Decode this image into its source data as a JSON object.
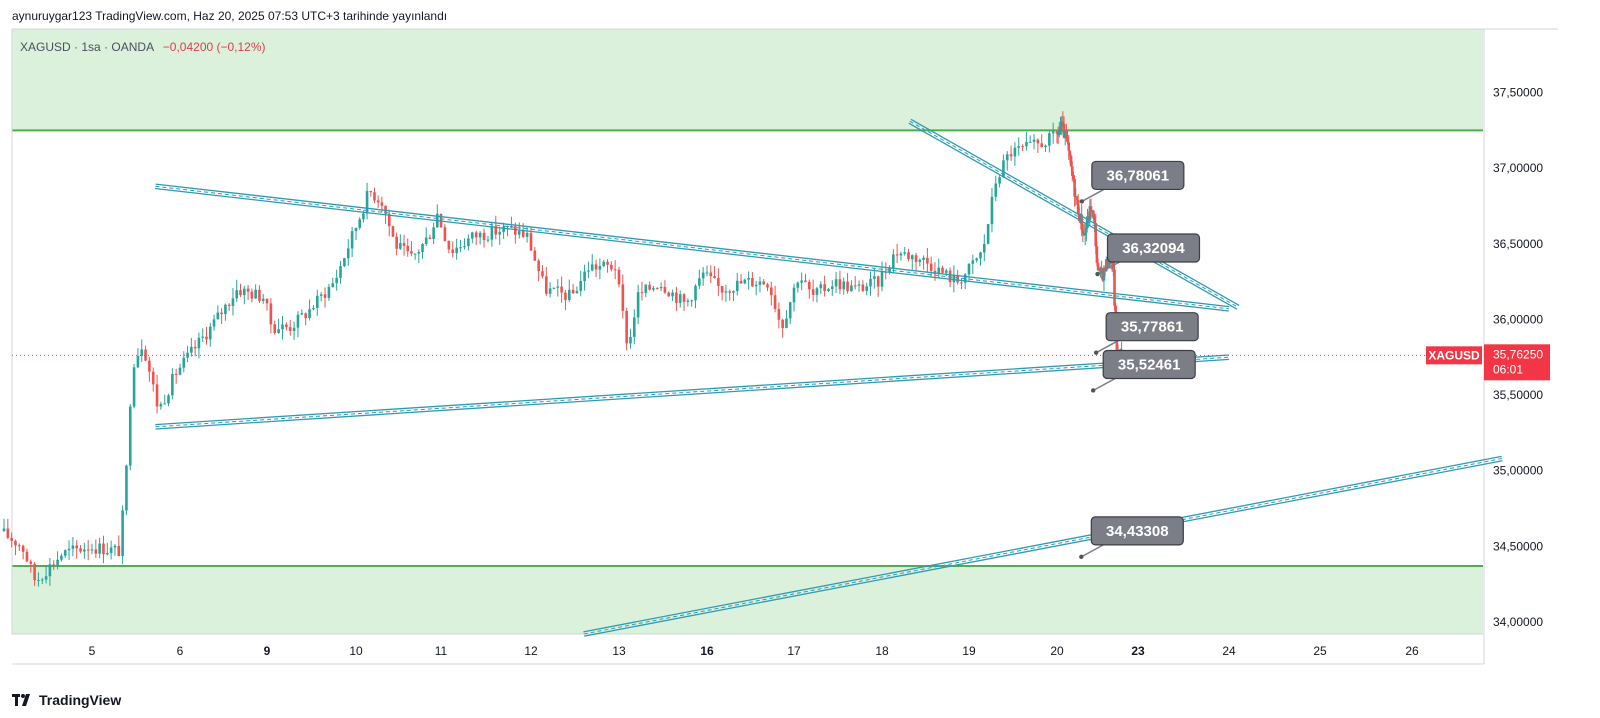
{
  "header": {
    "user": "aynuruygar123",
    "site": "TradingView.com",
    "published": "Haz 20, 2025 07:53 UTC+3 tarihinde yayınlandı"
  },
  "symbol_line": {
    "symbol": "XAGUSD",
    "interval": "1sa",
    "broker": "OANDA",
    "change": "−0,04200 (−0,12%)"
  },
  "footer": {
    "brand": "TradingView"
  },
  "colors": {
    "up": "#26a69a",
    "down": "#ef5350",
    "zone_fill": "#dcf1dc",
    "zone_line": "#4caf50",
    "trend": "#2d9bb5",
    "callout": "#7b7e86",
    "price_badge": "#f23645"
  },
  "chart_data": {
    "type": "candlestick",
    "y_ticks": [
      "37,50000",
      "37,00000",
      "36,50000",
      "36,00000",
      "35,50000",
      "35,00000",
      "34,50000",
      "34,00000"
    ],
    "y_tick_values": [
      37.5,
      37.0,
      36.5,
      36.0,
      35.5,
      35.0,
      34.5,
      34.0
    ],
    "ylim": [
      33.92,
      37.92
    ],
    "x_ticks": [
      {
        "label": "5",
        "day": 5,
        "bold": false
      },
      {
        "label": "6",
        "day": 6,
        "bold": false
      },
      {
        "label": "9",
        "day": 9,
        "bold": true
      },
      {
        "label": "10",
        "day": 10,
        "bold": false
      },
      {
        "label": "11",
        "day": 11,
        "bold": false
      },
      {
        "label": "12",
        "day": 12,
        "bold": false
      },
      {
        "label": "13",
        "day": 13,
        "bold": false
      },
      {
        "label": "16",
        "day": 16,
        "bold": true
      },
      {
        "label": "17",
        "day": 17,
        "bold": false
      },
      {
        "label": "18",
        "day": 18,
        "bold": false
      },
      {
        "label": "19",
        "day": 19,
        "bold": false
      },
      {
        "label": "20",
        "day": 20,
        "bold": false
      },
      {
        "label": "23",
        "day": 23,
        "bold": true
      },
      {
        "label": "24",
        "day": 24,
        "bold": false
      },
      {
        "label": "25",
        "day": 25,
        "bold": false
      },
      {
        "label": "26",
        "day": 26,
        "bold": false
      }
    ],
    "resistance_zone": {
      "low": 37.25,
      "high": 37.92
    },
    "support_zone": {
      "low": 33.92,
      "high": 34.37
    },
    "current_price": {
      "label": "XAGUSD",
      "value": 35.7625,
      "text": "35,76250",
      "countdown": "06:01"
    },
    "trendlines": [
      {
        "name": "upper-channel",
        "from": {
          "day": 5.72,
          "price": 36.88
        },
        "to": {
          "day": 24.0,
          "price": 36.07
        },
        "double": true
      },
      {
        "name": "lower-support",
        "from": {
          "day": 5.72,
          "price": 35.29
        },
        "to": {
          "day": 24.0,
          "price": 35.75
        },
        "double": true
      },
      {
        "name": "descending",
        "from": {
          "day": 18.32,
          "price": 37.31
        },
        "to": {
          "day": 24.1,
          "price": 36.08
        },
        "double": true
      },
      {
        "name": "lower-rising",
        "from": {
          "day": 12.6,
          "price": 33.92
        },
        "to": {
          "day": 27.0,
          "price": 35.08
        },
        "double": true
      }
    ],
    "callouts": [
      {
        "text": "36,78061",
        "price": 36.78061,
        "point": {
          "day": 20.92,
          "price": 36.78
        }
      },
      {
        "text": "36,32094",
        "price": 36.32094,
        "point": {
          "day": 21.5,
          "price": 36.3
        }
      },
      {
        "text": "35,77861",
        "price": 35.77861,
        "point": {
          "day": 21.45,
          "price": 35.78
        }
      },
      {
        "text": "35,52461",
        "price": 35.52461,
        "point": {
          "day": 21.34,
          "price": 35.53
        }
      },
      {
        "text": "34,43308",
        "price": 34.43308,
        "point": {
          "day": 20.9,
          "price": 34.43
        }
      }
    ],
    "anchors": [
      {
        "day": 4.0,
        "price": 34.6
      },
      {
        "day": 4.25,
        "price": 34.5
      },
      {
        "day": 4.4,
        "price": 34.27
      },
      {
        "day": 4.7,
        "price": 34.45
      },
      {
        "day": 5.0,
        "price": 34.5
      },
      {
        "day": 5.35,
        "price": 34.47
      },
      {
        "day": 5.42,
        "price": 34.85
      },
      {
        "day": 5.5,
        "price": 35.7
      },
      {
        "day": 5.62,
        "price": 35.85
      },
      {
        "day": 5.8,
        "price": 35.4
      },
      {
        "day": 6.0,
        "price": 35.65
      },
      {
        "day": 6.4,
        "price": 35.95
      },
      {
        "day": 6.7,
        "price": 36.2
      },
      {
        "day": 7.0,
        "price": 36.15
      },
      {
        "day": 7.1,
        "price": 35.95
      },
      {
        "day": 7.3,
        "price": 35.95
      },
      {
        "day": 7.5,
        "price": 36.05
      },
      {
        "day": 7.8,
        "price": 36.25
      },
      {
        "day": 8.0,
        "price": 36.55
      },
      {
        "day": 8.2,
        "price": 36.85
      },
      {
        "day": 8.35,
        "price": 36.78
      },
      {
        "day": 8.5,
        "price": 36.5
      },
      {
        "day": 8.7,
        "price": 36.4
      },
      {
        "day": 8.9,
        "price": 36.55
      },
      {
        "day": 9.0,
        "price": 36.7
      },
      {
        "day": 9.15,
        "price": 36.45
      },
      {
        "day": 9.4,
        "price": 36.55
      },
      {
        "day": 9.8,
        "price": 36.6
      },
      {
        "day": 10.0,
        "price": 36.55
      },
      {
        "day": 10.2,
        "price": 36.2
      },
      {
        "day": 10.5,
        "price": 36.15
      },
      {
        "day": 10.7,
        "price": 36.35
      },
      {
        "day": 11.0,
        "price": 36.35
      },
      {
        "day": 11.15,
        "price": 35.8
      },
      {
        "day": 11.25,
        "price": 36.15
      },
      {
        "day": 11.5,
        "price": 36.25
      },
      {
        "day": 11.8,
        "price": 36.1
      },
      {
        "day": 12.0,
        "price": 36.3
      },
      {
        "day": 12.2,
        "price": 36.2
      },
      {
        "day": 12.5,
        "price": 36.25
      },
      {
        "day": 12.75,
        "price": 36.25
      },
      {
        "day": 12.9,
        "price": 35.95
      },
      {
        "day": 13.1,
        "price": 36.3
      },
      {
        "day": 13.25,
        "price": 36.15
      },
      {
        "day": 13.5,
        "price": 36.25
      },
      {
        "day": 13.75,
        "price": 36.2
      },
      {
        "day": 14.0,
        "price": 36.25
      },
      {
        "day": 14.2,
        "price": 36.45
      },
      {
        "day": 14.5,
        "price": 36.4
      },
      {
        "day": 14.9,
        "price": 36.25
      },
      {
        "day": 15.0,
        "price": 36.3
      },
      {
        "day": 15.2,
        "price": 36.45
      },
      {
        "day": 15.35,
        "price": 36.92
      },
      {
        "day": 15.5,
        "price": 37.1
      },
      {
        "day": 15.8,
        "price": 37.15
      },
      {
        "day": 16.0,
        "price": 37.2
      },
      {
        "day": 16.2,
        "price": 37.28
      },
      {
        "day": 16.4,
        "price": 37.18
      },
      {
        "day": 16.65,
        "price": 36.9
      },
      {
        "day": 16.8,
        "price": 36.75
      },
      {
        "day": 17.05,
        "price": 36.55
      },
      {
        "day": 17.3,
        "price": 36.75
      },
      {
        "day": 17.45,
        "price": 36.6
      },
      {
        "day": 17.55,
        "price": 36.3
      },
      {
        "day": 17.75,
        "price": 36.3
      },
      {
        "day": 17.95,
        "price": 36.4
      },
      {
        "day": 18.1,
        "price": 36.4
      },
      {
        "day": 18.15,
        "price": 36.22
      },
      {
        "day": 18.25,
        "price": 35.8
      },
      {
        "day": 18.45,
        "price": 35.76
      }
    ],
    "time_mapping": [
      {
        "day": 4.0,
        "x_day": 4.0
      },
      {
        "day": 5.0,
        "x_day": 5.0
      },
      {
        "day": 6.0,
        "x_day": 6.0
      },
      {
        "day": 7.0,
        "x_day": 9.0
      },
      {
        "day": 8.0,
        "x_day": 10.0
      },
      {
        "day": 9.0,
        "x_day": 11.0
      },
      {
        "day": 10.0,
        "x_day": 12.0
      },
      {
        "day": 11.0,
        "x_day": 13.0
      },
      {
        "day": 12.0,
        "x_day": 16.0
      },
      {
        "day": 13.0,
        "x_day": 17.0
      },
      {
        "day": 14.0,
        "x_day": 18.0
      },
      {
        "day": 15.0,
        "x_day": 19.0
      },
      {
        "day": 16.0,
        "x_day": 20.0
      }
    ],
    "grid": false,
    "legend": "none"
  }
}
